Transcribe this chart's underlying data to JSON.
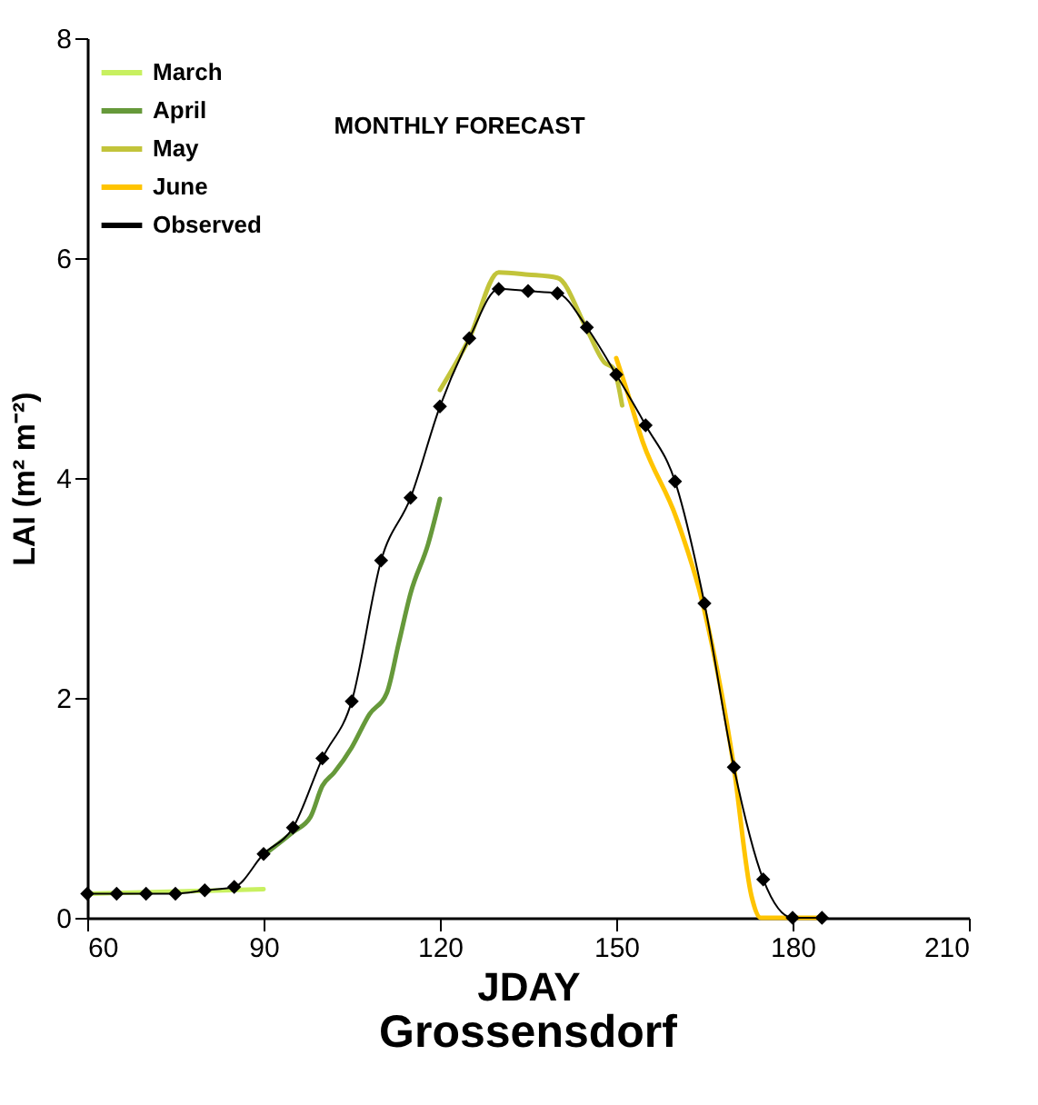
{
  "chart_data": {
    "type": "line",
    "title": "Grossensdorf",
    "xlabel": "JDAY",
    "ylabel": "LAI (m² m⁻²)",
    "annotations": [
      "MONTHLY FORECAST"
    ],
    "xlim": [
      60,
      210
    ],
    "xticks": [
      60,
      90,
      120,
      150,
      180,
      210
    ],
    "ylim": [
      0,
      8
    ],
    "yticks": [
      0,
      2,
      4,
      6,
      8
    ],
    "grid": false,
    "legend": "top left",
    "series": [
      {
        "name": "March",
        "color": "#c8f060",
        "x": [
          60,
          90
        ],
        "values": [
          0.22,
          0.26
        ]
      },
      {
        "name": "April",
        "color": "#66993a",
        "x": [
          90,
          95,
          98,
          100,
          102,
          105,
          108,
          111,
          113,
          115,
          118,
          120
        ],
        "values": [
          0.57,
          0.78,
          0.92,
          1.2,
          1.32,
          1.55,
          1.85,
          2.05,
          2.5,
          2.95,
          3.4,
          3.81
        ]
      },
      {
        "name": "May",
        "color": "#c2c43a",
        "x": [
          120,
          125,
          130,
          135,
          140,
          145,
          148,
          149.5,
          151
        ],
        "values": [
          4.8,
          5.27,
          5.87,
          5.85,
          5.82,
          5.35,
          5.05,
          5.0,
          4.66
        ]
      },
      {
        "name": "June",
        "color": "#ffc400",
        "x": [
          150,
          151.6,
          154.5,
          160.2,
          164.8,
          169.9,
          173,
          174.6,
          185.5
        ],
        "values": [
          5.09,
          4.83,
          4.33,
          3.64,
          2.84,
          1.41,
          0.2,
          0,
          0
        ]
      },
      {
        "name": "Observed",
        "color": "#000000",
        "marker": "diamond",
        "x": [
          60,
          65,
          70,
          75,
          80,
          85,
          90,
          95,
          100,
          105,
          110,
          115,
          120,
          125,
          130,
          135,
          140,
          145,
          150,
          155,
          160,
          165,
          170,
          175,
          180,
          185
        ],
        "values": [
          0.22,
          0.22,
          0.22,
          0.22,
          0.25,
          0.28,
          0.58,
          0.82,
          1.45,
          1.97,
          3.25,
          3.82,
          4.65,
          5.27,
          5.72,
          5.7,
          5.68,
          5.37,
          4.94,
          4.48,
          3.97,
          2.86,
          1.37,
          0.35,
          0,
          0
        ]
      }
    ]
  }
}
